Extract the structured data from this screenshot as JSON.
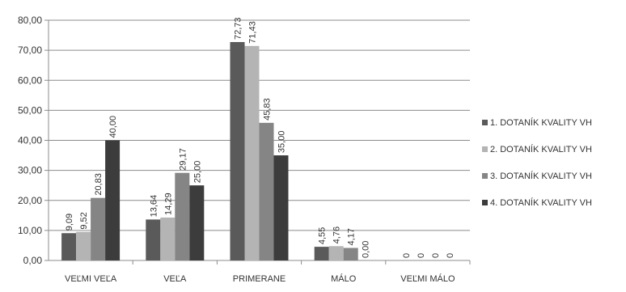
{
  "chart_data": {
    "type": "bar",
    "categories": [
      "VEĽMI VEĽA",
      "VEĽA",
      "PRIMERANE",
      "MÁLO",
      "VEĽMI MÁLO"
    ],
    "series": [
      {
        "name": "1. DOTANÍK KVALITY VH",
        "values": [
          9.09,
          13.64,
          72.73,
          4.55,
          0
        ],
        "labels": [
          "9,09",
          "13,64",
          "72,73",
          "4,55",
          "0"
        ],
        "color": "#5a5a5a"
      },
      {
        "name": "2. DOTANÍK KVALITY VH",
        "values": [
          9.52,
          14.29,
          71.43,
          4.76,
          0
        ],
        "labels": [
          "9,52",
          "14,29",
          "71,43",
          "4,76",
          "0"
        ],
        "color": "#b4b4b4"
      },
      {
        "name": "3. DOTANÍK KVALITY VH",
        "values": [
          20.83,
          29.17,
          45.83,
          4.17,
          0
        ],
        "labels": [
          "20,83",
          "29,17",
          "45,83",
          "4,17",
          "0"
        ],
        "color": "#858585"
      },
      {
        "name": "4. DOTANÍK KVALITY VH",
        "values": [
          40.0,
          25.0,
          35.0,
          0,
          0
        ],
        "labels": [
          "40,00",
          "25,00",
          "35,00",
          "0,00",
          "0"
        ],
        "color": "#3c3c3c"
      }
    ],
    "y_ticks": [
      "0,00",
      "10,00",
      "20,00",
      "30,00",
      "40,00",
      "50,00",
      "60,00",
      "70,00",
      "80,00"
    ],
    "ylim": [
      0,
      80
    ],
    "grid": true,
    "legend_position": "right"
  }
}
